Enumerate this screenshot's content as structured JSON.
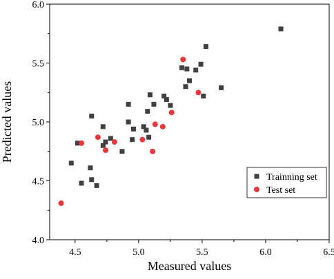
{
  "chart_data": {
    "type": "scatter",
    "title": "",
    "xlabel": "Measured values",
    "ylabel": "Predicted values",
    "xlim": [
      4.3,
      6.5
    ],
    "ylim": [
      4.0,
      6.0
    ],
    "x_ticks": [
      4.5,
      5.0,
      5.5,
      6.0,
      6.5
    ],
    "y_ticks": [
      4.0,
      4.5,
      5.0,
      5.5,
      6.0
    ],
    "x_tick_labels": [
      "4.5",
      "5.0",
      "5.5",
      "6.0",
      "6.5"
    ],
    "y_tick_labels": [
      "4.0",
      "4.5",
      "5.0",
      "5.5",
      "6.0"
    ],
    "grid": false,
    "legend_position": "bottom-right",
    "series": [
      {
        "name": "Trainning set",
        "marker": "square",
        "color": "#404040",
        "points": [
          [
            4.47,
            4.65
          ],
          [
            4.52,
            4.82
          ],
          [
            4.55,
            4.48
          ],
          [
            4.62,
            4.61
          ],
          [
            4.63,
            4.51
          ],
          [
            4.63,
            5.05
          ],
          [
            4.67,
            4.46
          ],
          [
            4.72,
            4.8
          ],
          [
            4.72,
            4.96
          ],
          [
            4.74,
            4.83
          ],
          [
            4.78,
            4.86
          ],
          [
            4.87,
            4.75
          ],
          [
            4.92,
            5.15
          ],
          [
            4.92,
            5.0
          ],
          [
            4.95,
            4.85
          ],
          [
            4.96,
            4.94
          ],
          [
            5.04,
            4.96
          ],
          [
            5.06,
            4.93
          ],
          [
            5.07,
            5.09
          ],
          [
            5.08,
            4.87
          ],
          [
            5.09,
            5.23
          ],
          [
            5.12,
            5.15
          ],
          [
            5.2,
            5.22
          ],
          [
            5.22,
            5.19
          ],
          [
            5.25,
            5.14
          ],
          [
            5.34,
            5.46
          ],
          [
            5.37,
            5.3
          ],
          [
            5.38,
            5.45
          ],
          [
            5.4,
            5.35
          ],
          [
            5.45,
            5.44
          ],
          [
            5.49,
            5.49
          ],
          [
            5.51,
            5.22
          ],
          [
            5.53,
            5.64
          ],
          [
            5.65,
            5.29
          ],
          [
            6.12,
            5.79
          ]
        ]
      },
      {
        "name": "Test set",
        "marker": "circle",
        "color": "#e8383d",
        "points": [
          [
            4.39,
            4.31
          ],
          [
            4.55,
            4.82
          ],
          [
            4.68,
            4.87
          ],
          [
            4.74,
            4.76
          ],
          [
            4.81,
            4.83
          ],
          [
            5.03,
            4.85
          ],
          [
            5.11,
            4.75
          ],
          [
            5.13,
            4.98
          ],
          [
            5.19,
            4.96
          ],
          [
            5.26,
            5.08
          ],
          [
            5.35,
            5.53
          ],
          [
            5.47,
            5.25
          ]
        ]
      }
    ]
  }
}
